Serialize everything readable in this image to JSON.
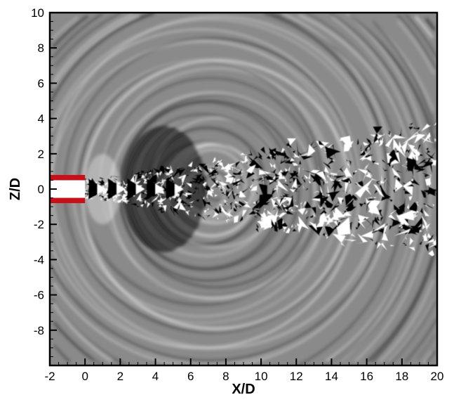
{
  "chart_data": {
    "type": "heatmap",
    "subtype": "numerical schlieren field (grayscale), jet from nozzle",
    "xlabel": "X/D",
    "ylabel": "Z/D",
    "xlim": [
      -2,
      20
    ],
    "ylim": [
      -10,
      10
    ],
    "xticks": [
      "-2",
      "0",
      "2",
      "4",
      "6",
      "8",
      "10",
      "12",
      "14",
      "16",
      "18",
      "20"
    ],
    "yticks": [
      "-8",
      "-6",
      "-4",
      "-2",
      "0",
      "2",
      "4",
      "6",
      "8",
      "10"
    ],
    "grid": false,
    "colormap": "grayscale",
    "nozzle": {
      "x_range": [
        -2,
        0
      ],
      "lip_z": [
        0.5,
        0.8
      ],
      "color": "#c8101a"
    },
    "colors": {
      "background": "#8a8a8a",
      "dark": "#000000",
      "light": "#ffffff",
      "nozzle": "#c8101a"
    }
  }
}
